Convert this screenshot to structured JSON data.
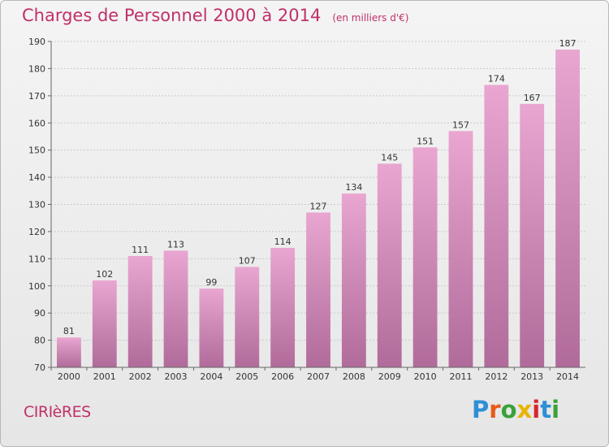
{
  "header": {
    "title": "Charges de Personnel 2000 à 2014",
    "subtitle": "(en milliers d'€)"
  },
  "footer": {
    "commune": "CIRIèRES",
    "logo_text": "Proxiti",
    "logo_colors": [
      "#2e8fd6",
      "#e85a1a",
      "#3aa23a",
      "#e8b400",
      "#d8262f",
      "#2e8fd6",
      "#3aa23a"
    ]
  },
  "colors": {
    "accent": "#c0306a",
    "bar_top": "#e9a6d1",
    "bar_bottom": "#b06b9a",
    "grid": "#c9c9c9",
    "axis_text": "#333333"
  },
  "chart_data": {
    "type": "bar",
    "categories": [
      "2000",
      "2001",
      "2002",
      "2003",
      "2004",
      "2005",
      "2006",
      "2007",
      "2008",
      "2009",
      "2010",
      "2011",
      "2012",
      "2013",
      "2014"
    ],
    "values": [
      81,
      102,
      111,
      113,
      99,
      107,
      114,
      127,
      134,
      145,
      151,
      157,
      174,
      167,
      187
    ],
    "ylim": [
      70,
      190
    ],
    "yticks": [
      70,
      80,
      90,
      100,
      110,
      120,
      130,
      140,
      150,
      160,
      170,
      180,
      190
    ],
    "grid": true
  }
}
